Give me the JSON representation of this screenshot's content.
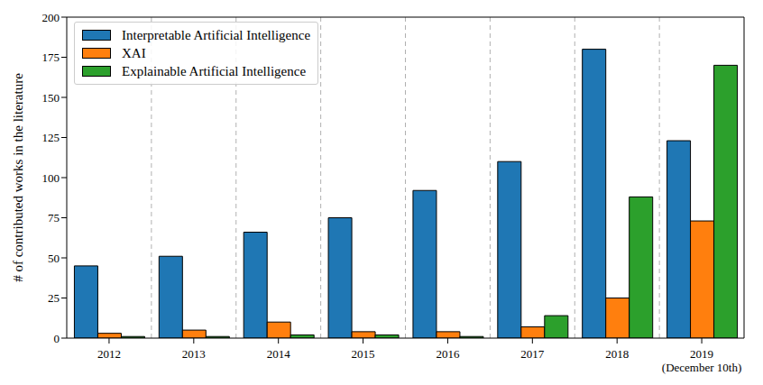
{
  "chart_data": {
    "type": "bar",
    "categories": [
      "2012",
      "2013",
      "2014",
      "2015",
      "2016",
      "2017",
      "2018",
      "2019\n(December 10th)"
    ],
    "series": [
      {
        "name": "Interpretable Artificial Intelligence",
        "color": "#1f77b4",
        "values": [
          45,
          51,
          66,
          75,
          92,
          110,
          180,
          123
        ]
      },
      {
        "name": "XAI",
        "color": "#ff7f0e",
        "values": [
          3,
          5,
          10,
          4,
          4,
          7,
          25,
          73
        ]
      },
      {
        "name": "Explainable Artificial Intelligence",
        "color": "#2ca02c",
        "values": [
          1,
          1,
          2,
          2,
          1,
          14,
          88,
          170
        ]
      }
    ],
    "y_label": "# of contributed works in the literature",
    "ylim": [
      0,
      200
    ],
    "yticks": [
      0,
      25,
      50,
      75,
      100,
      125,
      150,
      175,
      200
    ],
    "grid": true,
    "legend": "upper left"
  }
}
